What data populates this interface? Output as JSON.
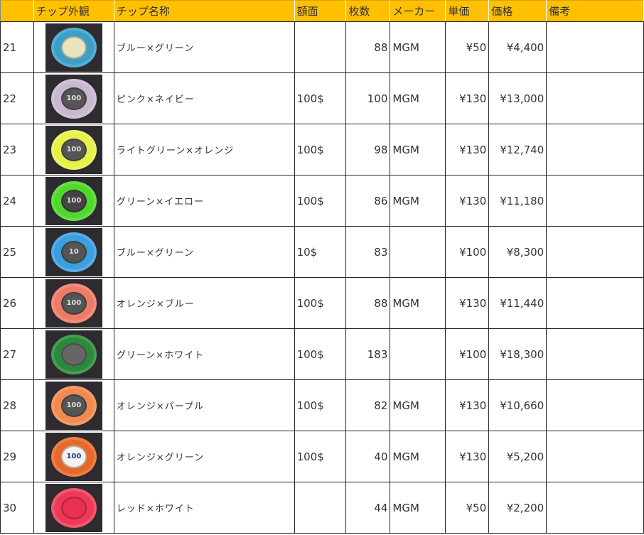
{
  "headers": [
    "",
    "チップ外観",
    "チップ名称",
    "額面",
    "枚数",
    "メーカー",
    "単価",
    "価格",
    "備考"
  ],
  "rows": [
    {
      "no": "21",
      "name": "ブルー×グリーン",
      "face": "",
      "count": "88",
      "maker": "MGM",
      "unit": "¥50",
      "price": "¥4,400",
      "note": "",
      "chip": {
        "edge": "#3aa0c8",
        "center": "#e8e4c0",
        "label": ""
      }
    },
    {
      "no": "22",
      "name": "ピンク×ネイビー",
      "face": "100$",
      "count": "100",
      "maker": "MGM",
      "unit": "¥130",
      "price": "¥13,000",
      "note": "",
      "chip": {
        "edge": "#c8b8d0",
        "center": "#555",
        "label": "100"
      }
    },
    {
      "no": "23",
      "name": "ライトグリーン×オレンジ",
      "face": "100$",
      "count": "98",
      "maker": "MGM",
      "unit": "¥130",
      "price": "¥12,740",
      "note": "",
      "chip": {
        "edge": "#e6f24a",
        "center": "#555",
        "label": "100"
      }
    },
    {
      "no": "24",
      "name": "グリーン×イエロー",
      "face": "100$",
      "count": "86",
      "maker": "MGM",
      "unit": "¥130",
      "price": "¥11,180",
      "note": "",
      "chip": {
        "edge": "#4fd82a",
        "center": "#444",
        "label": "100"
      }
    },
    {
      "no": "25",
      "name": "ブルー×グリーン",
      "face": "10$",
      "count": "83",
      "maker": "",
      "unit": "¥100",
      "price": "¥8,300",
      "note": "",
      "chip": {
        "edge": "#3a9ee0",
        "center": "#555",
        "label": "10"
      }
    },
    {
      "no": "26",
      "name": "オレンジ×ブルー",
      "face": "100$",
      "count": "88",
      "maker": "MGM",
      "unit": "¥130",
      "price": "¥11,440",
      "note": "",
      "chip": {
        "edge": "#f07a68",
        "center": "#555",
        "label": "100"
      }
    },
    {
      "no": "27",
      "name": "グリーン×ホワイト",
      "face": "100$",
      "count": "183",
      "maker": "",
      "unit": "¥100",
      "price": "¥18,300",
      "note": "",
      "chip": {
        "edge": "#2a8a3a",
        "center": "#666",
        "label": ""
      }
    },
    {
      "no": "28",
      "name": "オレンジ×パープル",
      "face": "100$",
      "count": "82",
      "maker": "MGM",
      "unit": "¥130",
      "price": "¥10,660",
      "note": "",
      "chip": {
        "edge": "#f08a50",
        "center": "#555",
        "label": "100"
      }
    },
    {
      "no": "29",
      "name": "オレンジ×グリーン",
      "face": "100$",
      "count": "40",
      "maker": "MGM",
      "unit": "¥130",
      "price": "¥5,200",
      "note": "",
      "chip": {
        "edge": "#e8682a",
        "center": "#f4f4f4",
        "label": "100"
      }
    },
    {
      "no": "30",
      "name": "レッド×ホワイト",
      "face": "",
      "count": "44",
      "maker": "MGM",
      "unit": "¥50",
      "price": "¥2,200",
      "note": "",
      "chip": {
        "edge": "#ee3a58",
        "center": "#e83050",
        "label": ""
      }
    }
  ],
  "colors": {
    "header": "#ffc000"
  }
}
